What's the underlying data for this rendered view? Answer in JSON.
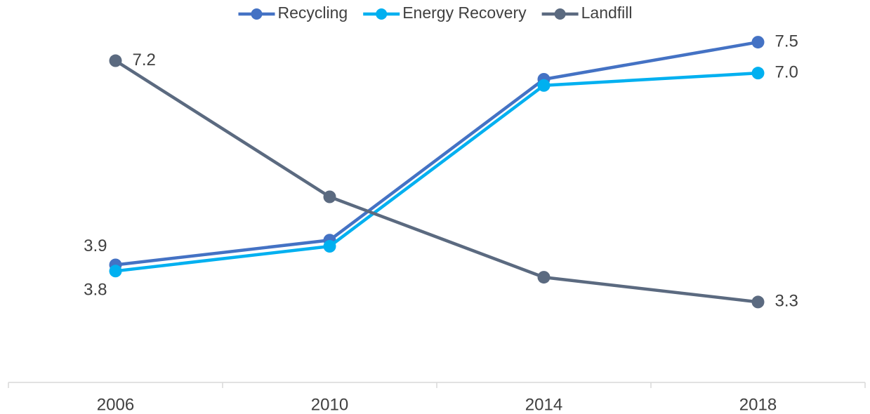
{
  "chart_data": {
    "type": "line",
    "categories": [
      "2006",
      "2010",
      "2014",
      "2018"
    ],
    "series": [
      {
        "name": "Recycling",
        "color": "#4472c4",
        "values": [
          3.9,
          4.3,
          6.9,
          7.5
        ],
        "value_labels": [
          "3.9",
          null,
          null,
          "7.5"
        ]
      },
      {
        "name": "Energy Recovery",
        "color": "#00b0f0",
        "values": [
          3.8,
          4.2,
          6.8,
          7.0
        ],
        "value_labels": [
          "3.8",
          null,
          null,
          "7.0"
        ]
      },
      {
        "name": "Landfill",
        "color": "#5b6a80",
        "values": [
          7.2,
          5.0,
          3.7,
          3.3
        ],
        "value_labels": [
          "7.2",
          null,
          null,
          "3.3"
        ]
      }
    ],
    "ylim": [
      2,
      8
    ],
    "grid": false,
    "legend": "top"
  }
}
